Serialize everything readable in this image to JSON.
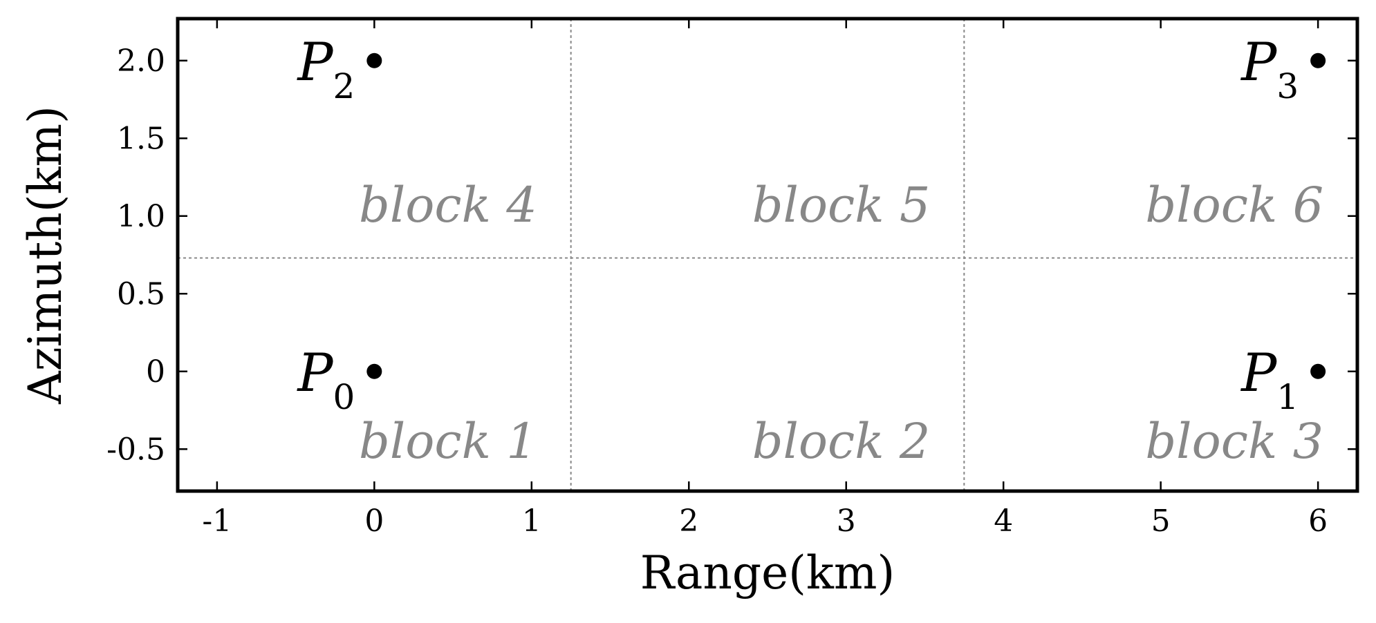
{
  "chart_data": {
    "type": "scatter",
    "xlabel": "Range(km)",
    "ylabel": "Azimuth(km)",
    "xlim": [
      -1.25,
      6.25
    ],
    "ylim": [
      -0.77,
      2.27
    ],
    "xticks": [
      -1,
      0,
      1,
      2,
      3,
      4,
      5,
      6
    ],
    "xtick_labels": [
      "-1",
      "0",
      "1",
      "2",
      "3",
      "4",
      "5",
      "6"
    ],
    "yticks": [
      -0.5,
      0,
      0.5,
      1.0,
      1.5,
      2.0
    ],
    "ytick_labels": [
      "-0.5",
      "0",
      "0.5",
      "1.0",
      "1.5",
      "2.0"
    ],
    "grid": false,
    "points": [
      {
        "label": "P",
        "subscript": "0",
        "x": 0,
        "y": 0
      },
      {
        "label": "P",
        "subscript": "1",
        "x": 6,
        "y": 0
      },
      {
        "label": "P",
        "subscript": "2",
        "x": 0,
        "y": 2.0
      },
      {
        "label": "P",
        "subscript": "3",
        "x": 6,
        "y": 2.0
      }
    ],
    "dividers": {
      "vertical_x": [
        1.25,
        3.75
      ],
      "horizontal_y": [
        0.73
      ]
    },
    "blocks": [
      {
        "label": "block 1",
        "x_right": 1.0,
        "y": -0.45
      },
      {
        "label": "block 2",
        "x_right": 3.5,
        "y": -0.45
      },
      {
        "label": "block 3",
        "x_right": 6.0,
        "y": -0.45
      },
      {
        "label": "block 4",
        "x_right": 1.0,
        "y": 1.07
      },
      {
        "label": "block 5",
        "x_right": 3.5,
        "y": 1.07
      },
      {
        "label": "block 6",
        "x_right": 6.0,
        "y": 1.07
      }
    ],
    "colors": {
      "points": "#000000",
      "block_labels": "#888888",
      "dividers": "#888888",
      "frame": "#000000"
    }
  }
}
